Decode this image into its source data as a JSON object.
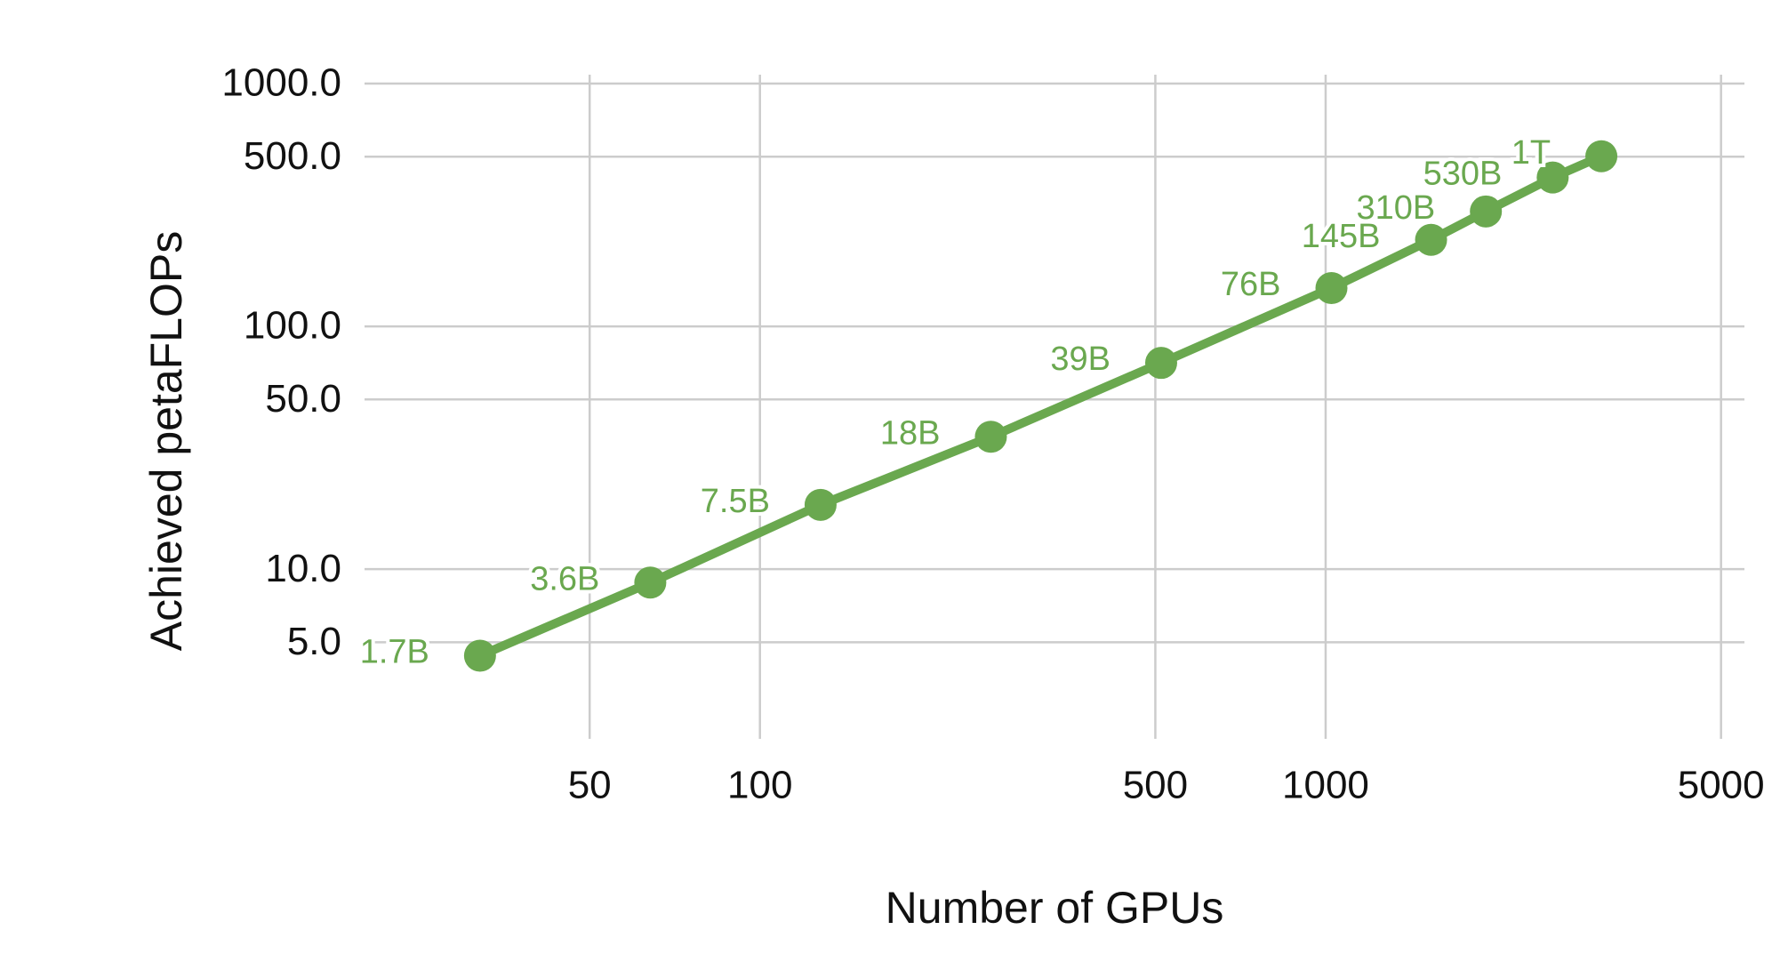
{
  "chart_data": {
    "type": "line",
    "x_label": "Number of GPUs",
    "y_label": "Achieved petaFLOPs",
    "x_log": true,
    "y_log": true,
    "grid": true,
    "x": [
      32,
      64,
      128,
      256,
      512,
      1024,
      1536,
      1920,
      2520,
      3072
    ],
    "series": [
      {
        "color": "#6aa84f",
        "values": [
          4.4,
          8.8,
          18.4,
          35.1,
          70.7,
          143.8,
          227.1,
          297.4,
          410.2,
          502.0
        ],
        "labels": [
          "1.7B",
          "3.6B",
          "7.5B",
          "18B",
          "39B",
          "76B",
          "145B",
          "310B",
          "530B",
          "1T"
        ]
      }
    ],
    "xlim": [
      20,
      5500
    ],
    "ylim": [
      2,
      1000
    ],
    "xticks": [
      50,
      100,
      500,
      1000,
      5000
    ],
    "yticks": [
      {
        "value": 5,
        "label": "5.0"
      },
      {
        "value": 10,
        "label": "10.0"
      },
      {
        "value": 50,
        "label": "50.0"
      },
      {
        "value": 100,
        "label": "100.0"
      },
      {
        "value": 500,
        "label": "500.0"
      },
      {
        "value": 1000,
        "label": "1000.0"
      }
    ]
  }
}
